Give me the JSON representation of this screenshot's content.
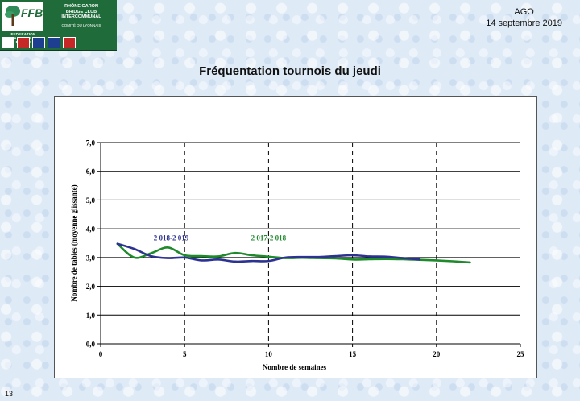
{
  "logo": {
    "ffb_text": "FFB",
    "ffb_sub": "FEDERATION FRANCAISE DE BRIDGE",
    "club_line1": "RHÔNE GARON",
    "club_line2": "BRIDGE CLUB",
    "club_line3": "INTERCOMMUNAL",
    "club_sub": "COMITÉ DU LYONNAIS",
    "badge_colors": [
      "#ffffff",
      "#c62828",
      "#1e3f8f",
      "#1e3f8f",
      "#c62828"
    ]
  },
  "header": {
    "event": "AGO",
    "date": "14 septembre 2019"
  },
  "slide": {
    "title": "Fréquentation tournois du jeudi",
    "page_number": "13"
  },
  "chart_data": {
    "type": "line",
    "xlabel": "Nombre de semaines",
    "ylabel": "Nombre de tables (moyenne glissante)",
    "xlim": [
      0,
      25
    ],
    "ylim": [
      0,
      7
    ],
    "x_ticks": [
      "0",
      "5",
      "10",
      "15",
      "20",
      "25"
    ],
    "y_ticks": [
      "0,0",
      "1,0",
      "2,0",
      "3,0",
      "4,0",
      "5,0",
      "6,0",
      "7,0"
    ],
    "grid": "dashed vertical lines at x = 5, 10, 15, 20; solid horizontal lines at each y tick",
    "series": [
      {
        "name": "2 018-2 019",
        "color": "#2b3290",
        "x": [
          1,
          2,
          3,
          4,
          5,
          6,
          7,
          8,
          9,
          10,
          11,
          12,
          13,
          14,
          15,
          16,
          17,
          18,
          19
        ],
        "values": [
          3.48,
          3.3,
          3.05,
          2.98,
          3.0,
          2.9,
          2.93,
          2.86,
          2.88,
          2.88,
          3.0,
          3.02,
          3.02,
          3.05,
          3.08,
          3.04,
          3.03,
          2.98,
          2.93
        ]
      },
      {
        "name": "2 017-2 018",
        "color": "#1e8a2c",
        "x": [
          1,
          2,
          3,
          4,
          5,
          6,
          7,
          8,
          9,
          10,
          11,
          12,
          13,
          14,
          15,
          16,
          17,
          18,
          19,
          20,
          21,
          22
        ],
        "values": [
          3.48,
          3.0,
          3.15,
          3.35,
          3.08,
          3.05,
          3.04,
          3.16,
          3.08,
          3.03,
          2.98,
          2.99,
          2.98,
          2.97,
          2.93,
          2.94,
          2.95,
          2.94,
          2.92,
          2.9,
          2.87,
          2.83
        ]
      }
    ],
    "annotations": [
      {
        "text": "2 018-2 019",
        "x": 4.2,
        "y": 3.6,
        "color": "#2b3290"
      },
      {
        "text": "2 017-2 018",
        "x": 10.0,
        "y": 3.6,
        "color": "#1e8a2c"
      }
    ]
  }
}
